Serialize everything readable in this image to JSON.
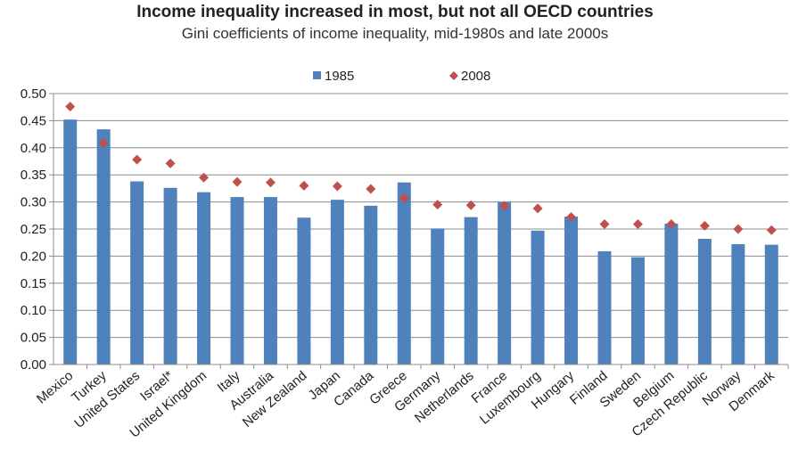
{
  "chart_data": {
    "type": "bar",
    "title": "Income inequality  increased in most, but not all OECD countries",
    "subtitle": "Gini coefficients of income inequality,  mid-1980s  and late 2000s",
    "categories": [
      "Mexico",
      "Turkey",
      "United States",
      "Israel*",
      "United Kingdom",
      "Italy",
      "Australia",
      "New Zealand",
      "Japan",
      "Canada",
      "Greece",
      "Germany",
      "Netherlands",
      "France",
      "Luxembourg",
      "Hungary",
      "Finland",
      "Sweden",
      "Belgium",
      "Czech Republic",
      "Norway",
      "Denmark"
    ],
    "series": [
      {
        "name": "1985",
        "mark": "bar",
        "color": "#4f81bd",
        "values": [
          0.452,
          0.434,
          0.338,
          0.326,
          0.318,
          0.309,
          0.309,
          0.271,
          0.304,
          0.293,
          0.336,
          0.251,
          0.272,
          0.3,
          0.247,
          0.273,
          0.209,
          0.198,
          0.26,
          0.232,
          0.222,
          0.221
        ]
      },
      {
        "name": "2008",
        "mark": "diamond",
        "color": "#c0504d",
        "values": [
          0.476,
          0.409,
          0.378,
          0.371,
          0.345,
          0.337,
          0.336,
          0.33,
          0.329,
          0.324,
          0.307,
          0.295,
          0.294,
          0.293,
          0.288,
          0.272,
          0.259,
          0.259,
          0.259,
          0.256,
          0.25,
          0.248
        ]
      }
    ],
    "ylim": [
      0,
      0.5
    ],
    "yticks": [
      "0.00",
      "0.05",
      "0.10",
      "0.15",
      "0.20",
      "0.25",
      "0.30",
      "0.35",
      "0.40",
      "0.45",
      "0.50"
    ],
    "grid": true,
    "legend": "top-center"
  }
}
